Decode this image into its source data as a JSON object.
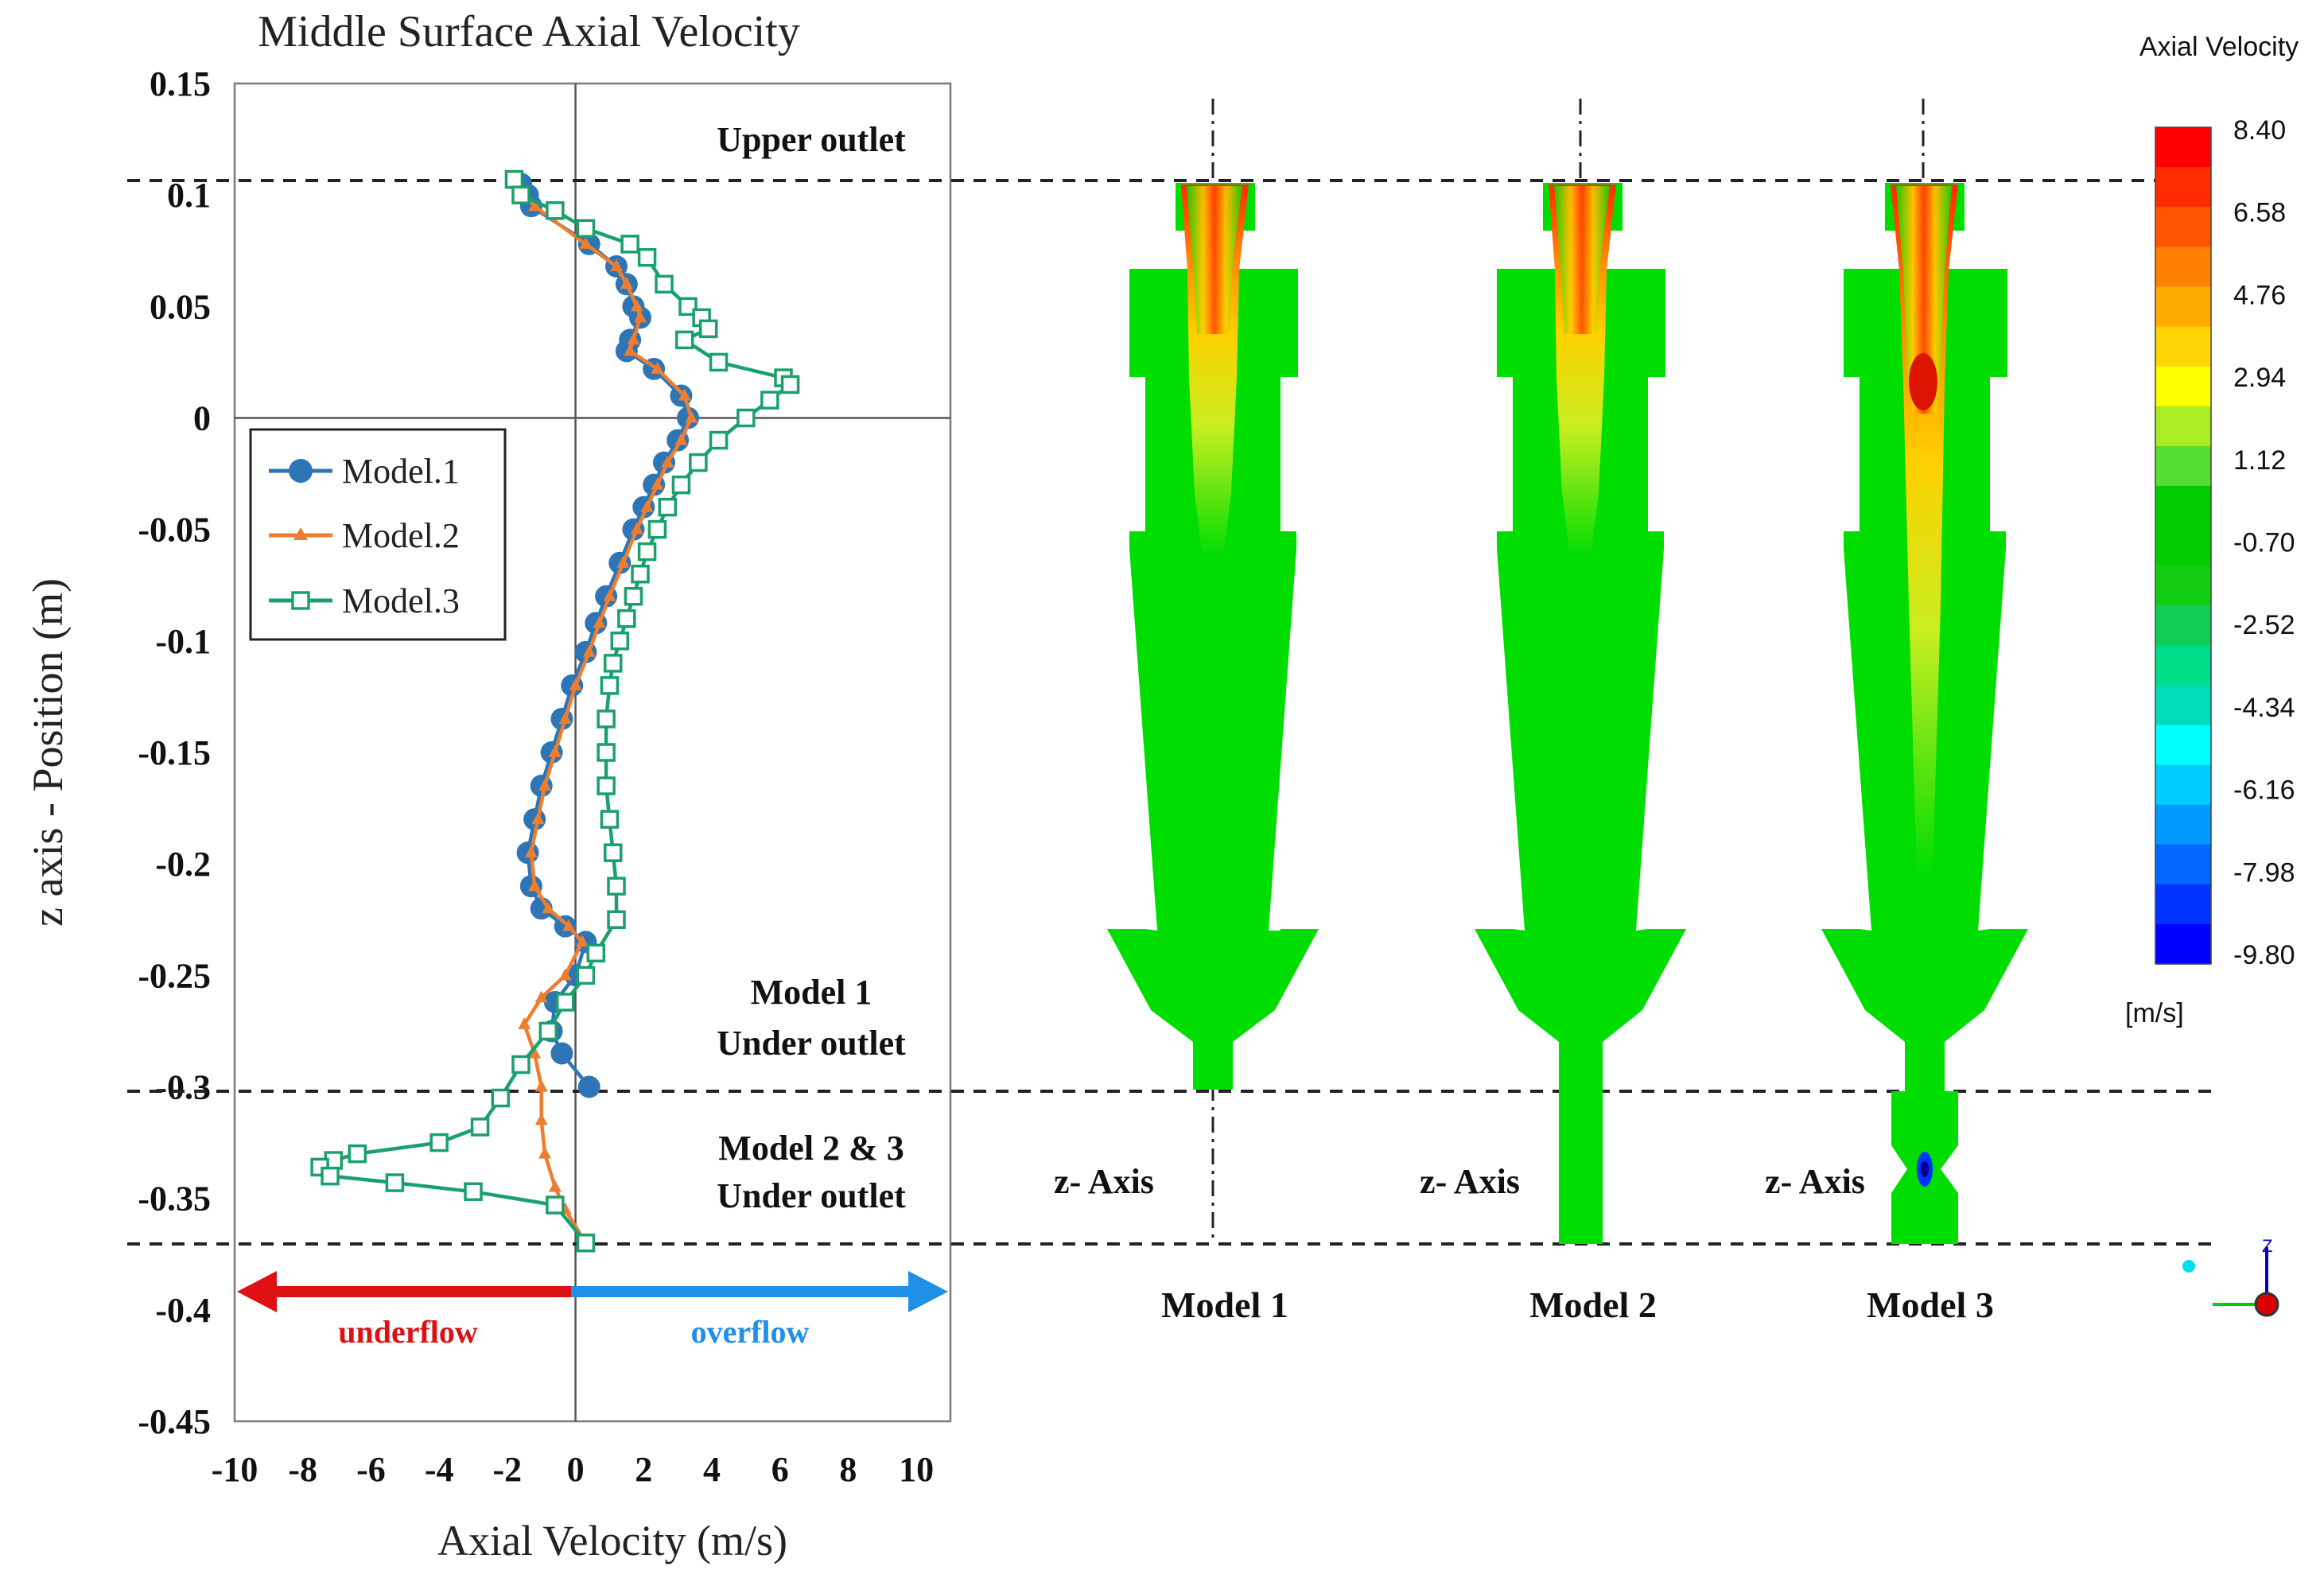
{
  "chart_data": {
    "type": "line",
    "title": "Middle Surface Axial Velocity",
    "xlabel": "Axial Velocity (m/s)",
    "ylabel": "z axis - Position (m)",
    "xlim": [
      -10,
      11
    ],
    "ylim": [
      -0.45,
      0.15
    ],
    "x_ticks": [
      -10,
      -8,
      -6,
      -4,
      -2,
      0,
      2,
      4,
      6,
      8,
      10
    ],
    "y_ticks": [
      0.15,
      0.1,
      0.05,
      0,
      -0.05,
      -0.1,
      -0.15,
      -0.2,
      -0.25,
      -0.3,
      -0.35,
      -0.4,
      -0.45
    ],
    "y_tick_labels": [
      "0.15",
      "0.1",
      "0.05",
      "0",
      "-0.05",
      "-0.1",
      "-0.15",
      "-0.2",
      "-0.25",
      "-0.3",
      "-0.35",
      "-0.4",
      "-0.45"
    ],
    "legend_position": "upper-left",
    "series": [
      {
        "name": "Model.1",
        "color": "#2e75b6",
        "marker": "circle",
        "points": [
          [
            -1.6,
            0.105
          ],
          [
            -1.4,
            0.1
          ],
          [
            -1.3,
            0.095
          ],
          [
            0.4,
            0.078
          ],
          [
            1.2,
            0.068
          ],
          [
            1.5,
            0.06
          ],
          [
            1.7,
            0.05
          ],
          [
            1.9,
            0.045
          ],
          [
            1.6,
            0.035
          ],
          [
            1.5,
            0.03
          ],
          [
            2.3,
            0.022
          ],
          [
            3.1,
            0.01
          ],
          [
            3.3,
            0.0
          ],
          [
            3.0,
            -0.01
          ],
          [
            2.6,
            -0.02
          ],
          [
            2.3,
            -0.03
          ],
          [
            2.0,
            -0.04
          ],
          [
            1.7,
            -0.05
          ],
          [
            1.3,
            -0.065
          ],
          [
            0.9,
            -0.08
          ],
          [
            0.6,
            -0.092
          ],
          [
            0.3,
            -0.105
          ],
          [
            -0.1,
            -0.12
          ],
          [
            -0.4,
            -0.135
          ],
          [
            -0.7,
            -0.15
          ],
          [
            -1.0,
            -0.165
          ],
          [
            -1.2,
            -0.18
          ],
          [
            -1.4,
            -0.195
          ],
          [
            -1.3,
            -0.21
          ],
          [
            -1.0,
            -0.22
          ],
          [
            -0.3,
            -0.228
          ],
          [
            0.3,
            -0.235
          ],
          [
            0.0,
            -0.25
          ],
          [
            -0.6,
            -0.262
          ],
          [
            -0.7,
            -0.275
          ],
          [
            -0.4,
            -0.285
          ],
          [
            0.4,
            -0.3
          ]
        ]
      },
      {
        "name": "Model.2",
        "color": "#ed7d31",
        "marker": "triangle",
        "points": [
          [
            -1.8,
            0.105
          ],
          [
            -1.5,
            0.1
          ],
          [
            -1.2,
            0.095
          ],
          [
            0.3,
            0.078
          ],
          [
            1.2,
            0.068
          ],
          [
            1.5,
            0.06
          ],
          [
            1.8,
            0.05
          ],
          [
            1.9,
            0.045
          ],
          [
            1.7,
            0.035
          ],
          [
            1.6,
            0.03
          ],
          [
            2.4,
            0.022
          ],
          [
            3.2,
            0.01
          ],
          [
            3.4,
            0.0
          ],
          [
            3.1,
            -0.01
          ],
          [
            2.7,
            -0.02
          ],
          [
            2.4,
            -0.03
          ],
          [
            2.1,
            -0.04
          ],
          [
            1.8,
            -0.05
          ],
          [
            1.4,
            -0.065
          ],
          [
            1.0,
            -0.08
          ],
          [
            0.7,
            -0.092
          ],
          [
            0.4,
            -0.105
          ],
          [
            0.0,
            -0.12
          ],
          [
            -0.3,
            -0.135
          ],
          [
            -0.6,
            -0.15
          ],
          [
            -0.9,
            -0.165
          ],
          [
            -1.1,
            -0.18
          ],
          [
            -1.3,
            -0.195
          ],
          [
            -1.2,
            -0.21
          ],
          [
            -0.8,
            -0.22
          ],
          [
            -0.2,
            -0.228
          ],
          [
            0.2,
            -0.235
          ],
          [
            -0.3,
            -0.25
          ],
          [
            -1.0,
            -0.26
          ],
          [
            -1.5,
            -0.272
          ],
          [
            -1.2,
            -0.285
          ],
          [
            -1.0,
            -0.3
          ],
          [
            -1.0,
            -0.315
          ],
          [
            -0.9,
            -0.33
          ],
          [
            -0.6,
            -0.345
          ],
          [
            -0.3,
            -0.355
          ],
          [
            0.3,
            -0.37
          ]
        ]
      },
      {
        "name": "Model.3",
        "color": "#1aa06b",
        "marker": "square",
        "points": [
          [
            -1.8,
            0.107
          ],
          [
            -1.6,
            0.1
          ],
          [
            -0.6,
            0.093
          ],
          [
            0.3,
            0.085
          ],
          [
            1.6,
            0.078
          ],
          [
            2.1,
            0.072
          ],
          [
            2.6,
            0.06
          ],
          [
            3.3,
            0.05
          ],
          [
            3.7,
            0.045
          ],
          [
            3.9,
            0.04
          ],
          [
            3.2,
            0.035
          ],
          [
            4.2,
            0.025
          ],
          [
            6.1,
            0.018
          ],
          [
            6.3,
            0.015
          ],
          [
            5.7,
            0.008
          ],
          [
            5.0,
            0.0
          ],
          [
            4.2,
            -0.01
          ],
          [
            3.6,
            -0.02
          ],
          [
            3.1,
            -0.03
          ],
          [
            2.7,
            -0.04
          ],
          [
            2.4,
            -0.05
          ],
          [
            2.1,
            -0.06
          ],
          [
            1.9,
            -0.07
          ],
          [
            1.7,
            -0.08
          ],
          [
            1.5,
            -0.09
          ],
          [
            1.3,
            -0.1
          ],
          [
            1.1,
            -0.11
          ],
          [
            1.0,
            -0.12
          ],
          [
            0.9,
            -0.135
          ],
          [
            0.9,
            -0.15
          ],
          [
            0.9,
            -0.165
          ],
          [
            1.0,
            -0.18
          ],
          [
            1.1,
            -0.195
          ],
          [
            1.2,
            -0.21
          ],
          [
            1.2,
            -0.225
          ],
          [
            0.6,
            -0.24
          ],
          [
            0.3,
            -0.25
          ],
          [
            -0.3,
            -0.262
          ],
          [
            -0.8,
            -0.275
          ],
          [
            -1.6,
            -0.29
          ],
          [
            -2.2,
            -0.305
          ],
          [
            -2.8,
            -0.318
          ],
          [
            -4.0,
            -0.325
          ],
          [
            -6.4,
            -0.33
          ],
          [
            -7.1,
            -0.333
          ],
          [
            -7.5,
            -0.336
          ],
          [
            -7.2,
            -0.34
          ],
          [
            -5.3,
            -0.343
          ],
          [
            -3.0,
            -0.347
          ],
          [
            -0.6,
            -0.353
          ],
          [
            0.3,
            -0.37
          ]
        ]
      }
    ],
    "colorbar": {
      "title": "Axial Velocity",
      "unit": "[m/s]",
      "tick_labels": [
        "8.40",
        "6.58",
        "4.76",
        "2.94",
        "1.12",
        "-0.70",
        "-2.52",
        "-4.34",
        "-6.16",
        "-7.98",
        "-9.80"
      ],
      "colors": [
        "#ff0000",
        "#ff2a00",
        "#ff5500",
        "#ff8000",
        "#ffaa00",
        "#ffd400",
        "#ffff00",
        "#aaee22",
        "#55dd33",
        "#00cc00",
        "#00cc00",
        "#11cc11",
        "#11cc55",
        "#00dd88",
        "#00ddbb",
        "#00ffff",
        "#00ccff",
        "#0099ff",
        "#0066ff",
        "#0033ff",
        "#0000ff"
      ]
    },
    "annotations": {
      "upper_outlet": "Upper outlet",
      "model1_under_line1": "Model 1",
      "model1_under_line2": "Under outlet",
      "model23_under_line1": "Model 2 & 3",
      "model23_under_line2": "Under outlet",
      "underflow": "underflow",
      "overflow": "overflow"
    },
    "models": [
      {
        "label": "Model 1",
        "axis_label": "z- Axis"
      },
      {
        "label": "Model 2",
        "axis_label": "z- Axis"
      },
      {
        "label": "Model 3",
        "axis_label": "z- Axis"
      }
    ],
    "triad_label": "Z"
  }
}
